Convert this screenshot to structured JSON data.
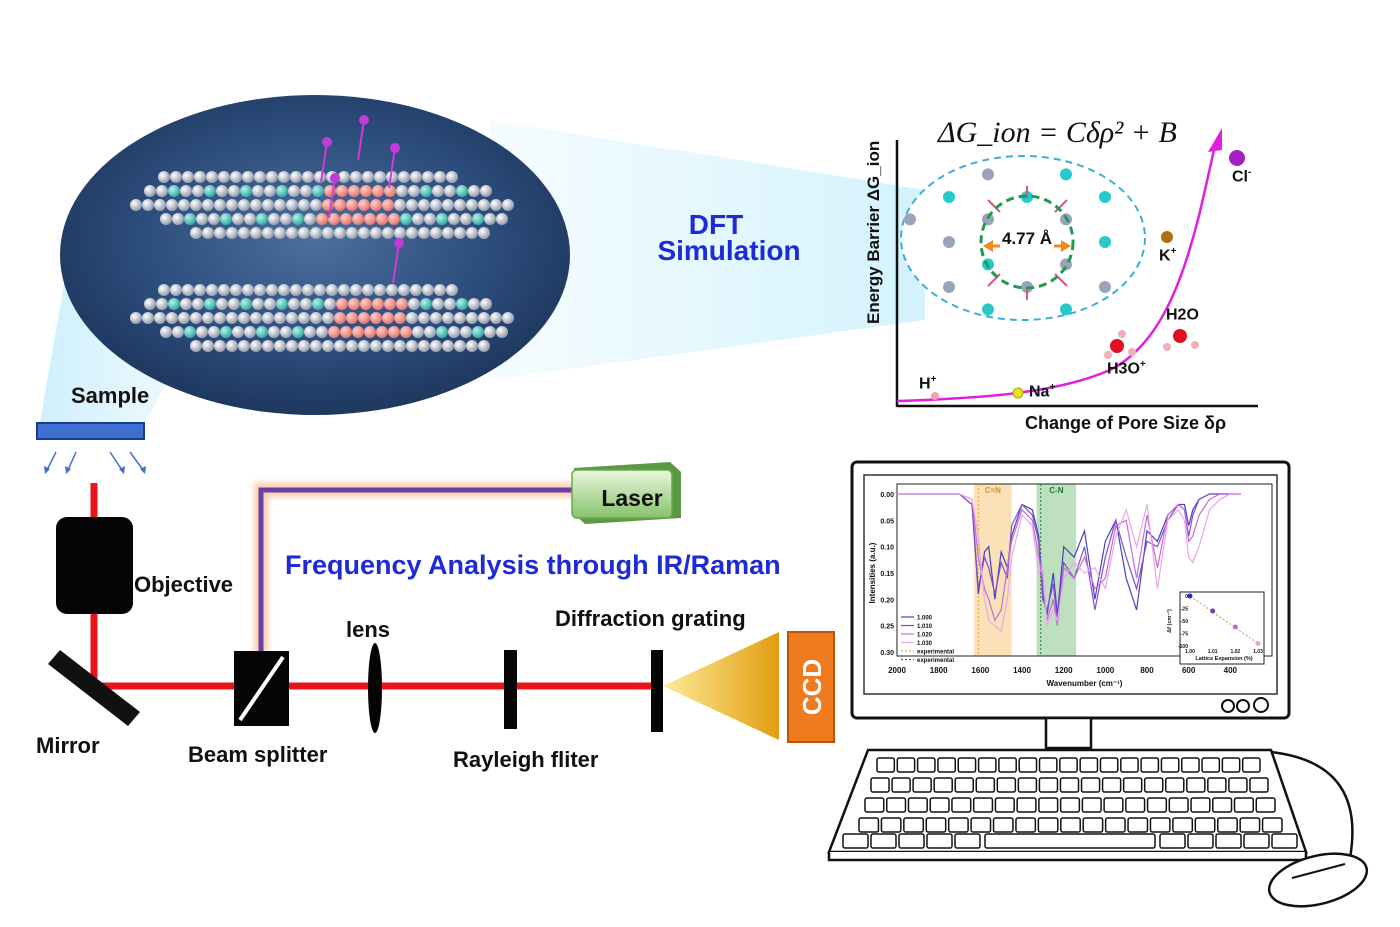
{
  "colors": {
    "beam": "#e8141b",
    "laser_path": "#6a3fa3",
    "dft_text": "#1d2ad6",
    "curve": "#e01ee0",
    "ccd_box": "#f07a1e",
    "ccd_cone": "#f1b81d",
    "sample": "#3f6fd0"
  },
  "labels": {
    "sample": "Sample",
    "objective": "Objective",
    "mirror": "Mirror",
    "beam_splitter": "Beam splitter",
    "lens": "lens",
    "rayleigh": "Rayleigh fliter",
    "diffraction": "Diffraction grating",
    "ccd": "CCD",
    "laser": "Laser",
    "frequency": "Frequency Analysis through IR/Raman",
    "dft_line1": "DFT",
    "dft_line2": "Simulation"
  },
  "energy_plot": {
    "formula": "ΔG_ion = Cδρ² + B",
    "ylabel": "Energy Barrier ΔG_ion",
    "xlabel": "Change of Pore Size δρ",
    "pore_size": "4.77 Å",
    "ions": [
      {
        "name": "H",
        "sup": "+",
        "color": "#f0a0b0"
      },
      {
        "name": "Na",
        "sup": "+",
        "color": "#e8e020"
      },
      {
        "name": "H3O",
        "sup": "+",
        "color": "#e01020"
      },
      {
        "name": "H2O",
        "sup": "",
        "color": "#e01020"
      },
      {
        "name": "K",
        "sup": "+",
        "color": "#b07010"
      },
      {
        "name": "Cl",
        "sup": "-",
        "color": "#a020c0"
      }
    ]
  },
  "chart_data": {
    "type": "line",
    "title": "",
    "xlabel": "Wavenumber (cm⁻¹)",
    "ylabel": "Intensities (a.u.)",
    "xlim": [
      2000,
      200
    ],
    "ylim": [
      0.0,
      0.3
    ],
    "x_ticks": [
      2000,
      1800,
      1600,
      1400,
      1200,
      1000,
      800,
      600,
      400
    ],
    "y_ticks": [
      "0.00",
      "0.05",
      "0.10",
      "0.15",
      "0.20",
      "0.25",
      "0.30"
    ],
    "bands": [
      {
        "label": "C=N",
        "from": 1630,
        "to": 1450,
        "color": "#f8d7a0"
      },
      {
        "label": "C-N",
        "from": 1330,
        "to": 1140,
        "color": "#a8d5a8"
      }
    ],
    "series": [
      {
        "name": "1.000",
        "color": "#4b3fc0",
        "x": [
          2000,
          1700,
          1640,
          1610,
          1580,
          1560,
          1530,
          1500,
          1470,
          1450,
          1400,
          1350,
          1320,
          1300,
          1280,
          1250,
          1230,
          1200,
          1150,
          1100,
          1050,
          1000,
          950,
          900,
          850,
          800,
          750,
          700,
          650,
          620,
          600,
          580,
          550,
          500,
          450,
          400,
          350
        ],
        "y": [
          0.0,
          0.0,
          0.02,
          0.19,
          0.11,
          0.1,
          0.2,
          0.11,
          0.14,
          0.08,
          0.02,
          0.03,
          0.08,
          0.19,
          0.23,
          0.15,
          0.23,
          0.1,
          0.12,
          0.07,
          0.2,
          0.09,
          0.05,
          0.16,
          0.22,
          0.07,
          0.09,
          0.04,
          0.02,
          0.02,
          0.06,
          0.03,
          0.01,
          0.0,
          0.0,
          0.0,
          0.0
        ]
      },
      {
        "name": "1.010",
        "color": "#7d52c9",
        "x": [
          2000,
          1700,
          1640,
          1610,
          1580,
          1560,
          1530,
          1500,
          1470,
          1450,
          1400,
          1350,
          1320,
          1300,
          1280,
          1250,
          1230,
          1200,
          1150,
          1100,
          1050,
          1000,
          950,
          900,
          850,
          800,
          750,
          700,
          650,
          620,
          600,
          580,
          550,
          500,
          450,
          400,
          350
        ],
        "y": [
          0.0,
          0.0,
          0.02,
          0.18,
          0.12,
          0.14,
          0.19,
          0.13,
          0.16,
          0.06,
          0.02,
          0.04,
          0.09,
          0.2,
          0.22,
          0.17,
          0.24,
          0.13,
          0.16,
          0.1,
          0.22,
          0.12,
          0.05,
          0.12,
          0.18,
          0.09,
          0.1,
          0.05,
          0.02,
          0.03,
          0.08,
          0.04,
          0.01,
          0.0,
          0.0,
          0.0,
          0.0
        ]
      },
      {
        "name": "1.020",
        "color": "#c66ad8",
        "x": [
          2000,
          1700,
          1640,
          1610,
          1580,
          1560,
          1530,
          1500,
          1470,
          1450,
          1400,
          1350,
          1320,
          1300,
          1280,
          1250,
          1230,
          1200,
          1150,
          1100,
          1050,
          1000,
          950,
          900,
          850,
          800,
          750,
          700,
          650,
          620,
          600,
          580,
          550,
          500,
          450,
          400,
          350
        ],
        "y": [
          0.0,
          0.0,
          0.01,
          0.12,
          0.18,
          0.2,
          0.24,
          0.22,
          0.14,
          0.09,
          0.03,
          0.05,
          0.12,
          0.16,
          0.24,
          0.2,
          0.25,
          0.14,
          0.16,
          0.12,
          0.18,
          0.16,
          0.06,
          0.05,
          0.16,
          0.04,
          0.14,
          0.04,
          0.02,
          0.03,
          0.09,
          0.08,
          0.04,
          0.01,
          0.0,
          0.0,
          0.0
        ]
      },
      {
        "name": "1.030",
        "color": "#eaa6e6",
        "x": [
          2000,
          1700,
          1640,
          1610,
          1580,
          1560,
          1530,
          1500,
          1470,
          1450,
          1400,
          1350,
          1320,
          1300,
          1280,
          1250,
          1230,
          1200,
          1150,
          1100,
          1050,
          1000,
          950,
          900,
          850,
          800,
          750,
          700,
          650,
          620,
          600,
          580,
          550,
          500,
          450,
          400,
          350
        ],
        "y": [
          0.0,
          0.0,
          0.01,
          0.08,
          0.2,
          0.24,
          0.25,
          0.26,
          0.2,
          0.12,
          0.04,
          0.06,
          0.15,
          0.14,
          0.25,
          0.22,
          0.24,
          0.16,
          0.13,
          0.15,
          0.14,
          0.18,
          0.08,
          0.03,
          0.1,
          0.02,
          0.18,
          0.05,
          0.03,
          0.05,
          0.12,
          0.13,
          0.1,
          0.03,
          0.01,
          0.0,
          0.0
        ]
      }
    ],
    "reference_lines": [
      {
        "name": "experimental",
        "x": 1610,
        "color": "#f0a030"
      },
      {
        "name": "experimental",
        "x": 1310,
        "color": "#2a7a3a"
      }
    ],
    "legend": [
      "1.000",
      "1.010",
      "1.020",
      "1.030",
      "experimental",
      "experimental"
    ],
    "inset": {
      "xlabel": "Lattice Expansion (%)",
      "ylabel": "Δf (cm⁻¹)",
      "x_ticks": [
        "1.00",
        "1.01",
        "1.02",
        "1.03"
      ],
      "y_ticks": [
        "0",
        "-25",
        "-50",
        "-75",
        "-100"
      ],
      "x": [
        1.0,
        1.01,
        1.02,
        1.03
      ],
      "y": [
        0,
        -30,
        -62,
        -95
      ]
    }
  }
}
